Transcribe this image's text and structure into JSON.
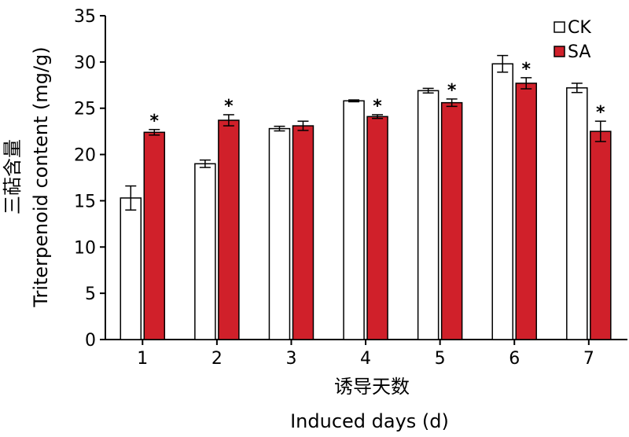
{
  "chart_data": {
    "type": "bar",
    "title": "",
    "xlabel_cn": "诱导天数",
    "xlabel": "Induced days (d)",
    "ylabel_cn": "三萜含量",
    "ylabel": "Triterpenoid content (mg/g)",
    "ylim": [
      0,
      35
    ],
    "yticks": [
      "0",
      "5",
      "10",
      "15",
      "20",
      "25",
      "30",
      "35"
    ],
    "categories": [
      "1",
      "2",
      "3",
      "4",
      "5",
      "6",
      "7"
    ],
    "legend_position": "top-right",
    "series": [
      {
        "name": "CK",
        "color": "#ffffff",
        "values": [
          15.3,
          19.0,
          22.8,
          25.8,
          26.9,
          29.8,
          27.2
        ],
        "errors": [
          1.3,
          0.4,
          0.25,
          0.1,
          0.25,
          0.9,
          0.5
        ]
      },
      {
        "name": "SA",
        "color": "#d0202a",
        "values": [
          22.4,
          23.7,
          23.1,
          24.1,
          25.6,
          27.7,
          22.5
        ],
        "errors": [
          0.3,
          0.6,
          0.5,
          0.2,
          0.4,
          0.6,
          1.1
        ],
        "significance": [
          "*",
          "*",
          "",
          "*",
          "*",
          "*",
          "*"
        ]
      }
    ]
  }
}
